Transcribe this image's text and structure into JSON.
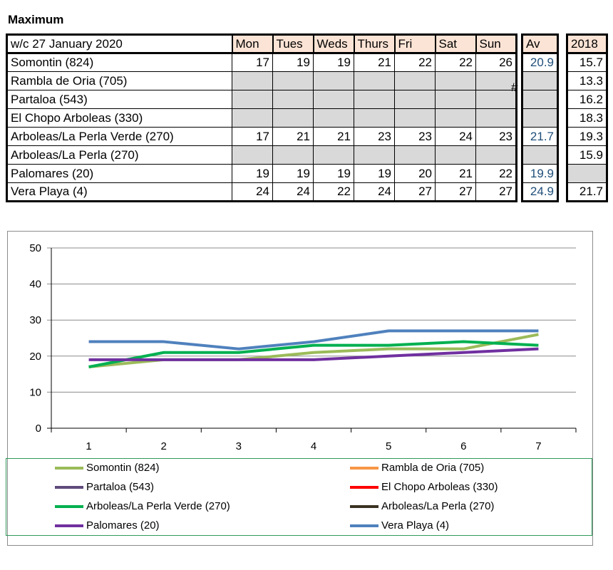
{
  "title": "Maximum",
  "week_label": "w/c 27 January 2020",
  "days": [
    "Mon",
    "Tues",
    "Weds",
    "Thurs",
    "Fri",
    "Sat",
    "Sun"
  ],
  "av_header": "Av",
  "y2018_header": "2018",
  "hash_mark": "#",
  "rows": [
    {
      "name": "Somontin (824)",
      "values": [
        "17",
        "19",
        "19",
        "21",
        "22",
        "22",
        "26"
      ],
      "av": "20.9",
      "y2018": "15.7"
    },
    {
      "name": "Rambla de Oria (705)",
      "values": [
        "",
        "",
        "",
        "",
        "",
        "",
        ""
      ],
      "av": "",
      "y2018": "13.3"
    },
    {
      "name": "Partaloa (543)",
      "values": [
        "",
        "",
        "",
        "",
        "",
        "",
        ""
      ],
      "av": "",
      "y2018": "16.2"
    },
    {
      "name": "El Chopo  Arboleas (330)",
      "values": [
        "",
        "",
        "",
        "",
        "",
        "",
        ""
      ],
      "av": "",
      "y2018": "18.3"
    },
    {
      "name": "Arboleas/La Perla Verde (270)",
      "values": [
        "17",
        "21",
        "21",
        "23",
        "23",
        "24",
        "23"
      ],
      "av": "21.7",
      "y2018": "19.3"
    },
    {
      "name": "Arboleas/La Perla (270)",
      "values": [
        "",
        "",
        "",
        "",
        "",
        "",
        ""
      ],
      "av": "",
      "y2018": "15.9"
    },
    {
      "name": "Palomares (20)",
      "values": [
        "19",
        "19",
        "19",
        "19",
        "20",
        "21",
        "22"
      ],
      "av": "19.9",
      "y2018": ""
    },
    {
      "name": "Vera Playa (4)",
      "values": [
        "24",
        "24",
        "22",
        "24",
        "27",
        "27",
        "27"
      ],
      "av": "24.9",
      "y2018": "21.7"
    }
  ],
  "chart_data": {
    "type": "line",
    "x": [
      1,
      2,
      3,
      4,
      5,
      6,
      7
    ],
    "xticks": [
      "1",
      "2",
      "3",
      "4",
      "5",
      "6",
      "7"
    ],
    "ylim": [
      0,
      50
    ],
    "yticks": [
      "0",
      "10",
      "20",
      "30",
      "40",
      "50"
    ],
    "grid": true,
    "legend_position": "bottom",
    "series": [
      {
        "name": "Somontin (824)",
        "color": "#9bbb59",
        "values": [
          17,
          19,
          19,
          21,
          22,
          22,
          26
        ]
      },
      {
        "name": "Rambla de Oria (705)",
        "color": "#f79646",
        "values": [
          null,
          null,
          null,
          null,
          null,
          null,
          null
        ]
      },
      {
        "name": "Partaloa (543)",
        "color": "#604a7b",
        "values": [
          null,
          null,
          null,
          null,
          null,
          null,
          null
        ]
      },
      {
        "name": "El Chopo  Arboleas (330)",
        "color": "#ff0000",
        "values": [
          null,
          null,
          null,
          null,
          null,
          null,
          null
        ]
      },
      {
        "name": "Arboleas/La Perla Verde (270)",
        "color": "#00b050",
        "values": [
          17,
          21,
          21,
          23,
          23,
          24,
          23
        ]
      },
      {
        "name": "Arboleas/La Perla (270)",
        "color": "#3a3222",
        "values": [
          null,
          null,
          null,
          null,
          null,
          null,
          null
        ]
      },
      {
        "name": "Palomares (20)",
        "color": "#7030a0",
        "values": [
          19,
          19,
          19,
          19,
          20,
          21,
          22
        ]
      },
      {
        "name": "Vera Playa (4)",
        "color": "#4f81bd",
        "values": [
          24,
          24,
          22,
          24,
          27,
          27,
          27
        ]
      }
    ]
  }
}
